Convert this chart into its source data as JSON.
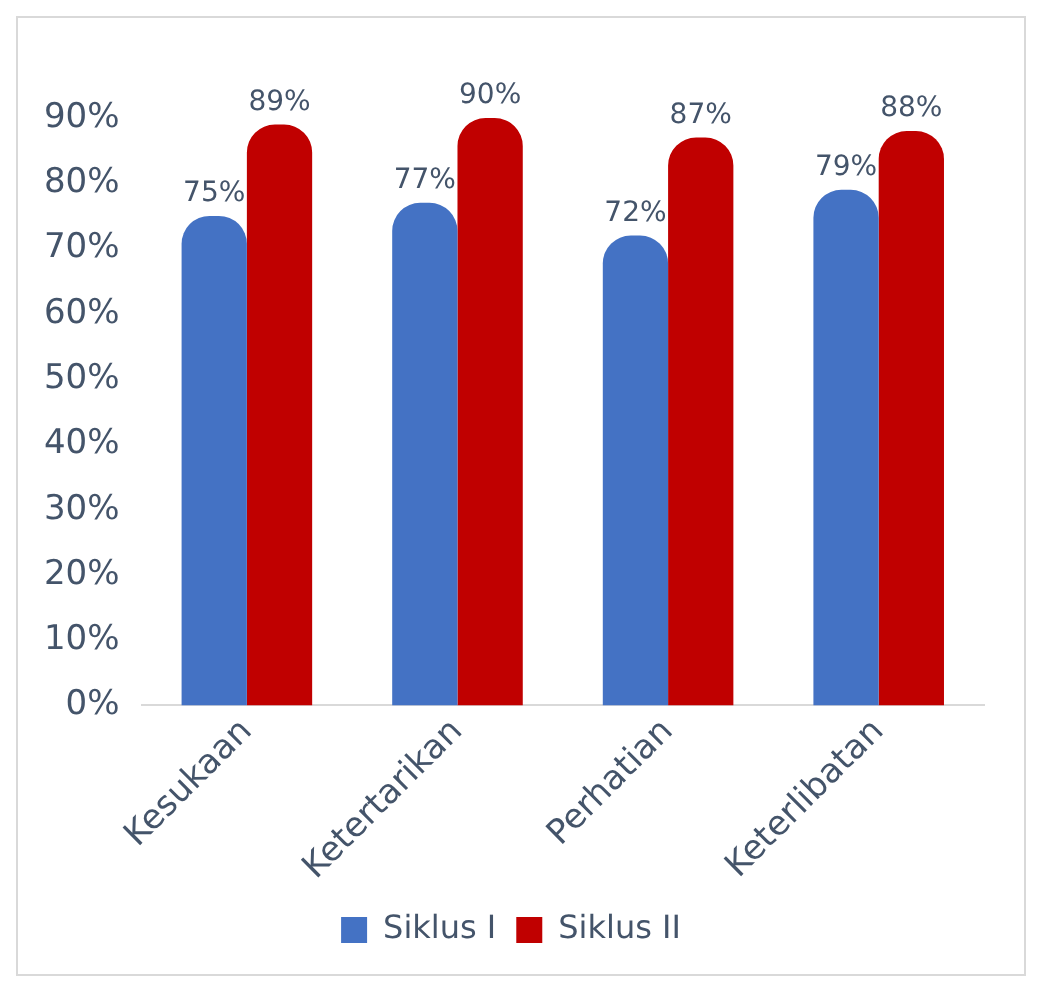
{
  "chart_data": {
    "type": "bar",
    "categories": [
      "Kesukaan",
      "Ketertarikan",
      "Perhatian",
      "Keterlibatan"
    ],
    "series": [
      {
        "name": "Siklus I",
        "color": "#4472c4",
        "values": [
          75,
          77,
          72,
          79
        ],
        "value_labels": [
          "75%",
          "77%",
          "72%",
          "79%"
        ]
      },
      {
        "name": "Siklus II",
        "color": "#c00000",
        "values": [
          89,
          90,
          87,
          88
        ],
        "value_labels": [
          "89%",
          "90%",
          "87%",
          "88%"
        ]
      }
    ],
    "ylim": [
      0,
      90
    ],
    "yticks": [
      {
        "value": 0,
        "label": "0%"
      },
      {
        "value": 10,
        "label": "10%"
      },
      {
        "value": 20,
        "label": "20%"
      },
      {
        "value": 30,
        "label": "30%"
      },
      {
        "value": 40,
        "label": "40%"
      },
      {
        "value": 50,
        "label": "50%"
      },
      {
        "value": 60,
        "label": "60%"
      },
      {
        "value": 70,
        "label": "70%"
      },
      {
        "value": 80,
        "label": "80%"
      },
      {
        "value": 90,
        "label": "90%"
      }
    ],
    "grid": false,
    "legend": "bottom"
  }
}
